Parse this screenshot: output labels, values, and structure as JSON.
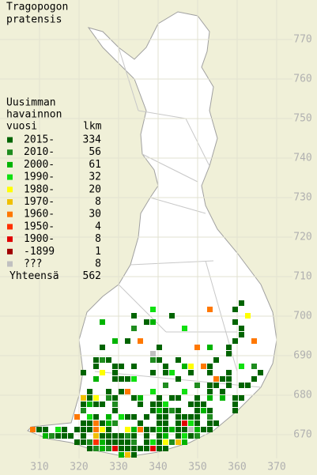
{
  "map": {
    "title": [
      "Tragopogon",
      "pratensis"
    ],
    "legend_title": [
      "Uusimman",
      "havainnon",
      "vuosi"
    ],
    "count_header": "lkm",
    "entries": [
      {
        "label": "2015-",
        "count": 334,
        "color": "#006400"
      },
      {
        "label": "2010-",
        "count": 56,
        "color": "#1e8c1e"
      },
      {
        "label": "2000-",
        "count": 61,
        "color": "#00b400"
      },
      {
        "label": "1990-",
        "count": 32,
        "color": "#10e010"
      },
      {
        "label": "1980-",
        "count": 20,
        "color": "#ffff00"
      },
      {
        "label": "1970-",
        "count": 8,
        "color": "#f0c000"
      },
      {
        "label": "1960-",
        "count": 30,
        "color": "#ff7800"
      },
      {
        "label": "1950-",
        "count": 4,
        "color": "#ff3000"
      },
      {
        "label": "1900-",
        "count": 8,
        "color": "#e00000"
      },
      {
        "label": "-1899",
        "count": 1,
        "color": "#a00000"
      },
      {
        "label": "???",
        "count": 8,
        "color": "#c0c0c0"
      }
    ],
    "total_label": "Yhteensä",
    "total": 562,
    "xticks": [
      310,
      320,
      330,
      340,
      350,
      360,
      370
    ],
    "yticks": [
      670,
      680,
      690,
      700,
      710,
      720,
      730,
      740,
      750,
      760,
      770
    ]
  }
}
